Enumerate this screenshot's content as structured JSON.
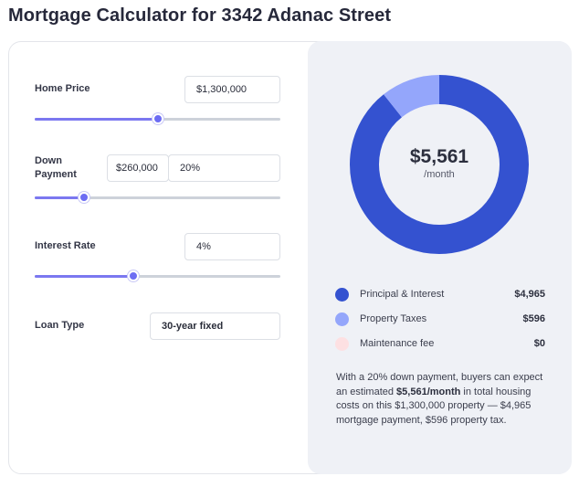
{
  "page": {
    "title": "Mortgage Calculator for 3342 Adanac Street"
  },
  "form": {
    "home_price": {
      "label": "Home Price",
      "value": "$1,300,000",
      "slider_fraction": 0.5
    },
    "down_payment": {
      "label": "Down Payment",
      "label_line1": "Down",
      "label_line2": "Payment",
      "amount_value": "$260,000",
      "percent_value": "20%",
      "slider_fraction": 0.2
    },
    "interest_rate": {
      "label": "Interest Rate",
      "value": "4%",
      "slider_fraction": 0.4
    },
    "loan_type": {
      "label": "Loan Type",
      "value": "30-year fixed"
    }
  },
  "summary_chart": {
    "amount": "$5,561",
    "period": "/month",
    "colors": {
      "principal": "#3452d0",
      "taxes": "#94a6fb",
      "maintenance": "#fde0e2"
    }
  },
  "chart_data": {
    "type": "pie",
    "categories": [
      "Principal & Interest",
      "Property Taxes",
      "Maintenance fee"
    ],
    "values": [
      4965,
      596,
      0
    ]
  },
  "legend": [
    {
      "label": "Principal & Interest",
      "value": "$4,965",
      "color": "#3452d0"
    },
    {
      "label": "Property Taxes",
      "value": "$596",
      "color": "#94a6fb"
    },
    {
      "label": "Maintenance fee",
      "value": "$0",
      "color": "#fde0e2"
    }
  ],
  "summary_text": {
    "part1": "With a 20% down payment, buyers can expect an estimated ",
    "bold": "$5,561/month",
    "part2": " in total housing costs on this $1,300,000 property — $4,965 mortgage payment, $596 property tax."
  }
}
